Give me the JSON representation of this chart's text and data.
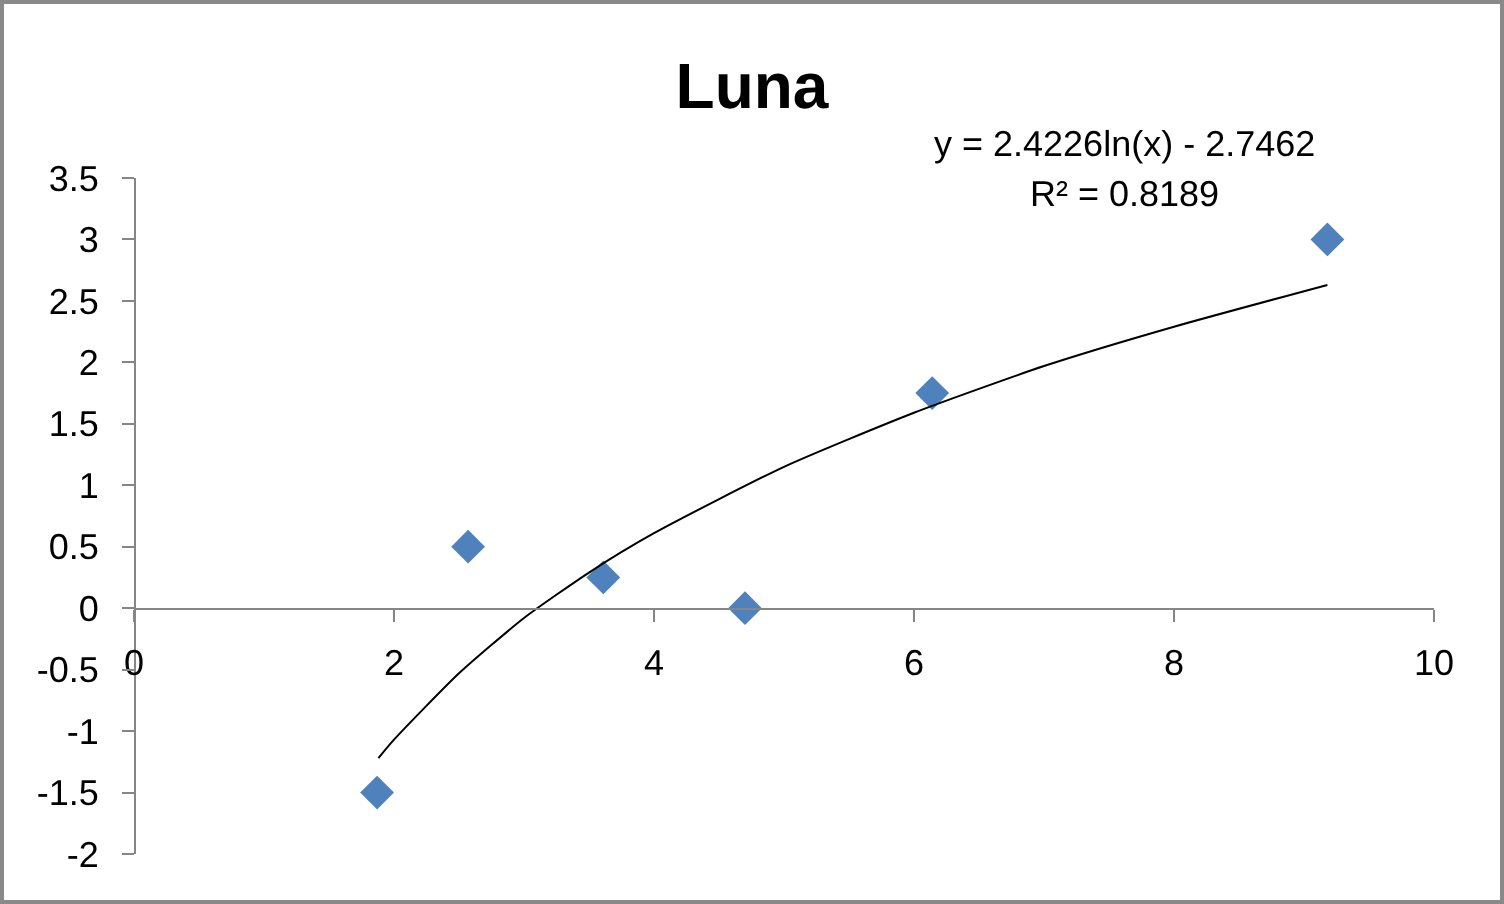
{
  "chart_data": {
    "type": "scatter",
    "title": "Luna",
    "annotations": [
      "y = 2.4226ln(x) - 2.7462",
      "R² = 0.8189"
    ],
    "xlim": [
      0,
      10
    ],
    "xticks": [
      0,
      2,
      4,
      6,
      8,
      10
    ],
    "ylim": [
      -2,
      3.5
    ],
    "yticks": [
      -2,
      -1.5,
      -1,
      -0.5,
      0,
      0.5,
      1,
      1.5,
      2,
      2.5,
      3,
      3.5
    ],
    "grid": false,
    "marker": "diamond",
    "series": [
      {
        "color": "#4f81bd",
        "x": [
          1.87,
          2.57,
          3.61,
          4.7,
          6.14,
          9.18
        ],
        "values": [
          -1.5,
          0.5,
          0.25,
          0,
          1.75,
          3
        ]
      },
      {
        "type": "line",
        "color": "#000000",
        "marker": "none",
        "x": [
          1.88,
          2,
          2.5,
          3,
          3.5,
          4,
          5,
          6,
          7,
          8,
          9.18
        ],
        "values": [
          -1.22,
          -1.07,
          -0.53,
          -0.08,
          0.29,
          0.61,
          1.15,
          1.59,
          1.97,
          2.29,
          2.63
        ]
      }
    ]
  }
}
